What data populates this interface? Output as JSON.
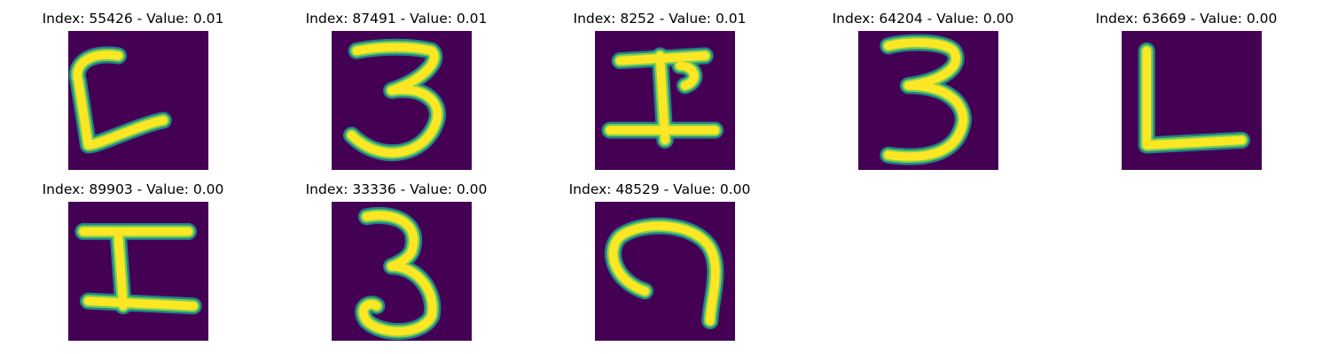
{
  "figure": {
    "background": "#ffffff",
    "image_background": "#440154",
    "stroke_outer": "#21918c",
    "stroke_mid": "#7ad151",
    "stroke_core": "#fde725"
  },
  "panels": [
    {
      "title": "Index: 55426 - Value: 0.01",
      "glyph": "open-bracket-with-tail"
    },
    {
      "title": "Index: 87491 - Value: 0.01",
      "glyph": "digit-three-wide"
    },
    {
      "title": "Index: 8252 - Value: 0.01",
      "glyph": "cross-bar-symbol"
    },
    {
      "title": "Index: 64204 - Value: 0.00",
      "glyph": "digit-three-narrow"
    },
    {
      "title": "Index: 63669 - Value: 0.00",
      "glyph": "letter-l"
    },
    {
      "title": "Index: 89903 - Value: 0.00",
      "glyph": "letter-i-serif"
    },
    {
      "title": "Index: 33336 - Value: 0.00",
      "glyph": "digit-three-tall"
    },
    {
      "title": "Index: 48529 - Value: 0.00",
      "glyph": "hook-symbol"
    }
  ]
}
